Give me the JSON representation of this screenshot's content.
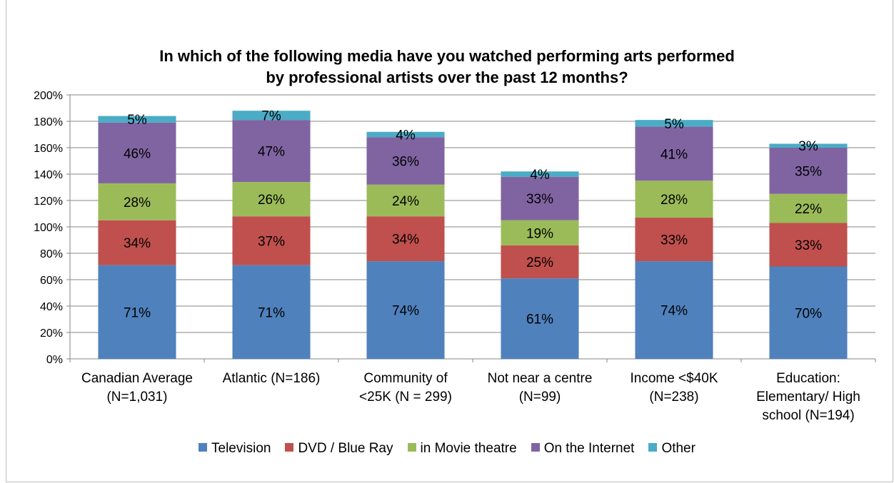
{
  "chart_data": {
    "type": "bar",
    "stacked": true,
    "title_lines": [
      "In which of the following media have you watched performing arts performed",
      "by professional artists over the past 12 months?"
    ],
    "categories": [
      [
        "Canadian Average",
        "(N=1,031)"
      ],
      [
        "Atlantic (N=186)"
      ],
      [
        "Community of",
        "<25K (N = 299)"
      ],
      [
        "Not near a centre",
        "(N=99)"
      ],
      [
        "Income <$40K",
        "(N=238)"
      ],
      [
        "Education:",
        "Elementary/ High",
        "school (N=194)"
      ]
    ],
    "series": [
      {
        "name": "Television",
        "color": "#4f81bd",
        "values": [
          71,
          71,
          74,
          61,
          74,
          70
        ]
      },
      {
        "name": "DVD / Blue Ray",
        "color": "#c0504d",
        "values": [
          34,
          37,
          34,
          25,
          33,
          33
        ]
      },
      {
        "name": "in Movie theatre",
        "color": "#9bbb59",
        "values": [
          28,
          26,
          24,
          19,
          28,
          22
        ]
      },
      {
        "name": "On the Internet",
        "color": "#8064a2",
        "values": [
          46,
          47,
          36,
          33,
          41,
          35
        ]
      },
      {
        "name": "Other",
        "color": "#4bacc6",
        "values": [
          5,
          7,
          4,
          4,
          5,
          3
        ]
      }
    ],
    "ylim": [
      0,
      200
    ],
    "yticks": [
      "0%",
      "20%",
      "40%",
      "60%",
      "80%",
      "100%",
      "120%",
      "140%",
      "160%",
      "180%",
      "200%"
    ],
    "grid": true,
    "legend_position": "bottom",
    "value_suffix": "%"
  }
}
